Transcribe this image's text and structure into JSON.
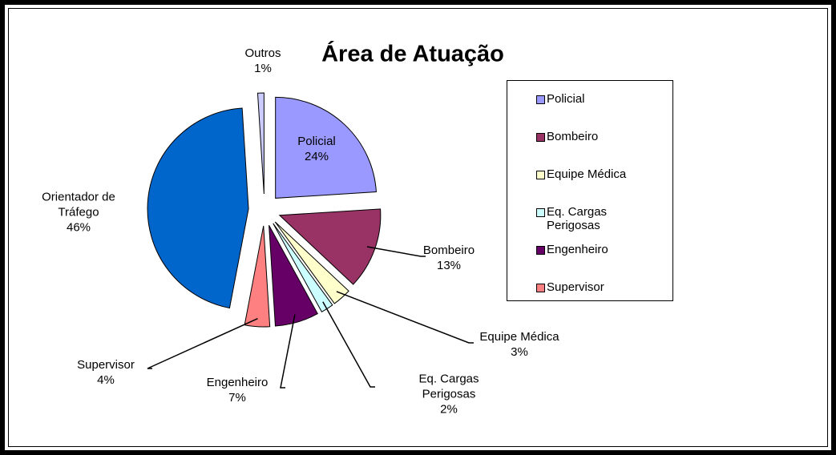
{
  "chart_data": {
    "type": "pie",
    "title": "Área de Atuação",
    "categories": [
      "Policial",
      "Bombeiro",
      "Equipe Médica",
      "Eq. Cargas Perigosas",
      "Engenheiro",
      "Supervisor",
      "Orientador de Tráfego",
      "Outros"
    ],
    "values": [
      24,
      13,
      3,
      2,
      7,
      4,
      46,
      1
    ],
    "value_labels": [
      "24%",
      "13%",
      "3%",
      "2%",
      "7%",
      "4%",
      "46%",
      "1%"
    ],
    "colors": [
      "#9999ff",
      "#993366",
      "#ffffcc",
      "#ccffff",
      "#660066",
      "#ff8080",
      "#0066cc",
      "#ccccff"
    ],
    "legend": "right"
  }
}
